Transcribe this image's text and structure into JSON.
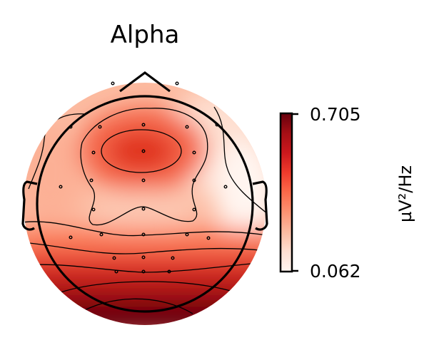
{
  "chart_data": {
    "type": "heatmap",
    "subtype": "eeg-topographic-map",
    "title": "Alpha",
    "colormap": "Reds",
    "colorbar": {
      "min": 0.062,
      "max": 0.705,
      "tick_labels": [
        "0.705",
        "0.062"
      ],
      "label": "µV²/Hz",
      "placement": "right"
    },
    "contours": true,
    "sensors_shown": true,
    "sensor_count": 29,
    "regions": [
      {
        "region": "frontal-central peak",
        "level": 0.62
      },
      {
        "region": "left frontal / temporal",
        "level": 0.38
      },
      {
        "region": "right frontal",
        "level": 0.2
      },
      {
        "region": "right temporal",
        "level": 0.1
      },
      {
        "region": "central-parietal",
        "level": 0.3
      },
      {
        "region": "posterior band",
        "level": 0.55
      },
      {
        "region": "occipital",
        "level": 0.9
      }
    ]
  }
}
